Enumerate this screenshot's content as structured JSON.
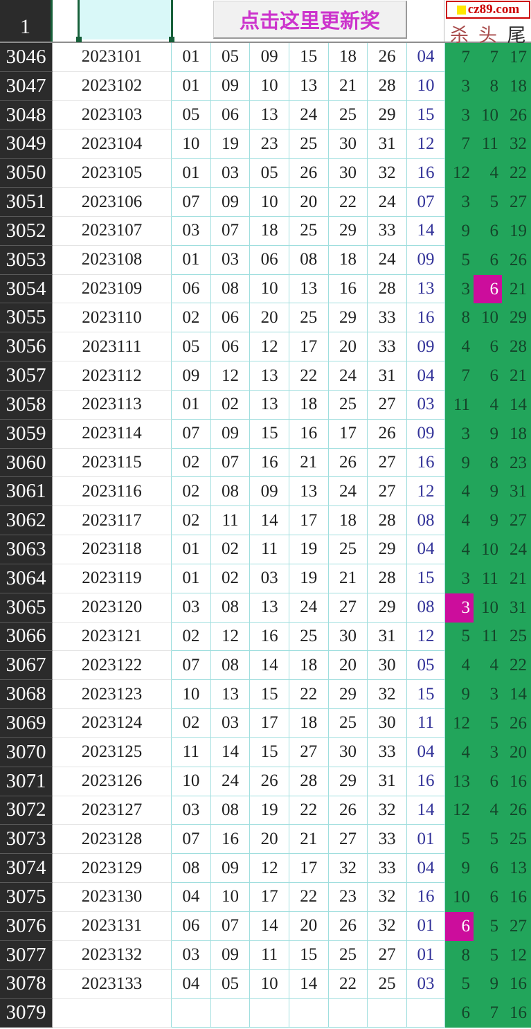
{
  "header": {
    "index_label": "1",
    "update_button_label": "点击这里更新奖",
    "logo_text": "cz89.com",
    "col_kill": "杀",
    "col_head": "头",
    "col_tail": "尾"
  },
  "colors": {
    "green_bg": "#22a55b",
    "highlight_bg": "#cc0d9c",
    "blue_ball_text": "#333399",
    "button_text": "#cc33cc",
    "logo_red": "#cc0000",
    "grid_cyan": "#9fdede",
    "row_header_bg": "#2b2b2b",
    "selection_fill": "#d9f8f8",
    "selection_border": "#17603a"
  },
  "table": {
    "rows": [
      {
        "idx": "3046",
        "period": "2023101",
        "reds": [
          "01",
          "05",
          "09",
          "15",
          "18",
          "26"
        ],
        "blue": "04",
        "kill": "7",
        "head": "7",
        "tail": "17",
        "hl": null
      },
      {
        "idx": "3047",
        "period": "2023102",
        "reds": [
          "01",
          "09",
          "10",
          "13",
          "21",
          "28"
        ],
        "blue": "10",
        "kill": "3",
        "head": "8",
        "tail": "18",
        "hl": null
      },
      {
        "idx": "3048",
        "period": "2023103",
        "reds": [
          "05",
          "06",
          "13",
          "24",
          "25",
          "29"
        ],
        "blue": "15",
        "kill": "3",
        "head": "10",
        "tail": "26",
        "hl": null
      },
      {
        "idx": "3049",
        "period": "2023104",
        "reds": [
          "10",
          "19",
          "23",
          "25",
          "30",
          "31"
        ],
        "blue": "12",
        "kill": "7",
        "head": "11",
        "tail": "32",
        "hl": null
      },
      {
        "idx": "3050",
        "period": "2023105",
        "reds": [
          "01",
          "03",
          "05",
          "26",
          "30",
          "32"
        ],
        "blue": "16",
        "kill": "12",
        "head": "4",
        "tail": "22",
        "hl": null
      },
      {
        "idx": "3051",
        "period": "2023106",
        "reds": [
          "07",
          "09",
          "10",
          "20",
          "22",
          "24"
        ],
        "blue": "07",
        "kill": "3",
        "head": "5",
        "tail": "27",
        "hl": null
      },
      {
        "idx": "3052",
        "period": "2023107",
        "reds": [
          "03",
          "07",
          "18",
          "25",
          "29",
          "33"
        ],
        "blue": "14",
        "kill": "9",
        "head": "6",
        "tail": "19",
        "hl": null
      },
      {
        "idx": "3053",
        "period": "2023108",
        "reds": [
          "01",
          "03",
          "06",
          "08",
          "18",
          "24"
        ],
        "blue": "09",
        "kill": "5",
        "head": "6",
        "tail": "26",
        "hl": null
      },
      {
        "idx": "3054",
        "period": "2023109",
        "reds": [
          "06",
          "08",
          "10",
          "13",
          "16",
          "28"
        ],
        "blue": "13",
        "kill": "3",
        "head": "6",
        "tail": "21",
        "hl": "head"
      },
      {
        "idx": "3055",
        "period": "2023110",
        "reds": [
          "02",
          "06",
          "20",
          "25",
          "29",
          "33"
        ],
        "blue": "16",
        "kill": "8",
        "head": "10",
        "tail": "29",
        "hl": null
      },
      {
        "idx": "3056",
        "period": "2023111",
        "reds": [
          "05",
          "06",
          "12",
          "17",
          "20",
          "33"
        ],
        "blue": "09",
        "kill": "4",
        "head": "6",
        "tail": "28",
        "hl": null
      },
      {
        "idx": "3057",
        "period": "2023112",
        "reds": [
          "09",
          "12",
          "13",
          "22",
          "24",
          "31"
        ],
        "blue": "04",
        "kill": "7",
        "head": "6",
        "tail": "21",
        "hl": null
      },
      {
        "idx": "3058",
        "period": "2023113",
        "reds": [
          "01",
          "02",
          "13",
          "18",
          "25",
          "27"
        ],
        "blue": "03",
        "kill": "11",
        "head": "4",
        "tail": "14",
        "hl": null
      },
      {
        "idx": "3059",
        "period": "2023114",
        "reds": [
          "07",
          "09",
          "15",
          "16",
          "17",
          "26"
        ],
        "blue": "09",
        "kill": "3",
        "head": "9",
        "tail": "18",
        "hl": null
      },
      {
        "idx": "3060",
        "period": "2023115",
        "reds": [
          "02",
          "07",
          "16",
          "21",
          "26",
          "27"
        ],
        "blue": "16",
        "kill": "9",
        "head": "8",
        "tail": "23",
        "hl": null
      },
      {
        "idx": "3061",
        "period": "2023116",
        "reds": [
          "02",
          "08",
          "09",
          "13",
          "24",
          "27"
        ],
        "blue": "12",
        "kill": "4",
        "head": "9",
        "tail": "31",
        "hl": null
      },
      {
        "idx": "3062",
        "period": "2023117",
        "reds": [
          "02",
          "11",
          "14",
          "17",
          "18",
          "28"
        ],
        "blue": "08",
        "kill": "4",
        "head": "9",
        "tail": "27",
        "hl": null
      },
      {
        "idx": "3063",
        "period": "2023118",
        "reds": [
          "01",
          "02",
          "11",
          "19",
          "25",
          "29"
        ],
        "blue": "04",
        "kill": "4",
        "head": "10",
        "tail": "24",
        "hl": null
      },
      {
        "idx": "3064",
        "period": "2023119",
        "reds": [
          "01",
          "02",
          "03",
          "19",
          "21",
          "28"
        ],
        "blue": "15",
        "kill": "3",
        "head": "11",
        "tail": "21",
        "hl": null
      },
      {
        "idx": "3065",
        "period": "2023120",
        "reds": [
          "03",
          "08",
          "13",
          "24",
          "27",
          "29"
        ],
        "blue": "08",
        "kill": "3",
        "head": "10",
        "tail": "31",
        "hl": "kill"
      },
      {
        "idx": "3066",
        "period": "2023121",
        "reds": [
          "02",
          "12",
          "16",
          "25",
          "30",
          "31"
        ],
        "blue": "12",
        "kill": "5",
        "head": "11",
        "tail": "25",
        "hl": null
      },
      {
        "idx": "3067",
        "period": "2023122",
        "reds": [
          "07",
          "08",
          "14",
          "18",
          "20",
          "30"
        ],
        "blue": "05",
        "kill": "4",
        "head": "4",
        "tail": "22",
        "hl": null
      },
      {
        "idx": "3068",
        "period": "2023123",
        "reds": [
          "10",
          "13",
          "15",
          "22",
          "29",
          "32"
        ],
        "blue": "15",
        "kill": "9",
        "head": "3",
        "tail": "14",
        "hl": null
      },
      {
        "idx": "3069",
        "period": "2023124",
        "reds": [
          "02",
          "03",
          "17",
          "18",
          "25",
          "30"
        ],
        "blue": "11",
        "kill": "12",
        "head": "5",
        "tail": "26",
        "hl": null
      },
      {
        "idx": "3070",
        "period": "2023125",
        "reds": [
          "11",
          "14",
          "15",
          "27",
          "30",
          "33"
        ],
        "blue": "04",
        "kill": "4",
        "head": "3",
        "tail": "20",
        "hl": null
      },
      {
        "idx": "3071",
        "period": "2023126",
        "reds": [
          "10",
          "24",
          "26",
          "28",
          "29",
          "31"
        ],
        "blue": "16",
        "kill": "13",
        "head": "6",
        "tail": "16",
        "hl": null
      },
      {
        "idx": "3072",
        "period": "2023127",
        "reds": [
          "03",
          "08",
          "19",
          "22",
          "26",
          "32"
        ],
        "blue": "14",
        "kill": "12",
        "head": "4",
        "tail": "26",
        "hl": null
      },
      {
        "idx": "3073",
        "period": "2023128",
        "reds": [
          "07",
          "16",
          "20",
          "21",
          "27",
          "33"
        ],
        "blue": "01",
        "kill": "5",
        "head": "5",
        "tail": "25",
        "hl": null
      },
      {
        "idx": "3074",
        "period": "2023129",
        "reds": [
          "08",
          "09",
          "12",
          "17",
          "32",
          "33"
        ],
        "blue": "04",
        "kill": "9",
        "head": "6",
        "tail": "13",
        "hl": null
      },
      {
        "idx": "3075",
        "period": "2023130",
        "reds": [
          "04",
          "10",
          "17",
          "22",
          "23",
          "32"
        ],
        "blue": "16",
        "kill": "10",
        "head": "6",
        "tail": "16",
        "hl": null
      },
      {
        "idx": "3076",
        "period": "2023131",
        "reds": [
          "06",
          "07",
          "14",
          "20",
          "26",
          "32"
        ],
        "blue": "01",
        "kill": "6",
        "head": "5",
        "tail": "27",
        "hl": "kill"
      },
      {
        "idx": "3077",
        "period": "2023132",
        "reds": [
          "03",
          "09",
          "11",
          "15",
          "25",
          "27"
        ],
        "blue": "01",
        "kill": "8",
        "head": "5",
        "tail": "12",
        "hl": null
      },
      {
        "idx": "3078",
        "period": "2023133",
        "reds": [
          "04",
          "05",
          "10",
          "14",
          "22",
          "25"
        ],
        "blue": "03",
        "kill": "5",
        "head": "9",
        "tail": "16",
        "hl": null
      },
      {
        "idx": "3079",
        "period": "",
        "reds": [
          "",
          "",
          "",
          "",
          "",
          ""
        ],
        "blue": "",
        "kill": "6",
        "head": "7",
        "tail": "16",
        "hl": null
      }
    ]
  }
}
